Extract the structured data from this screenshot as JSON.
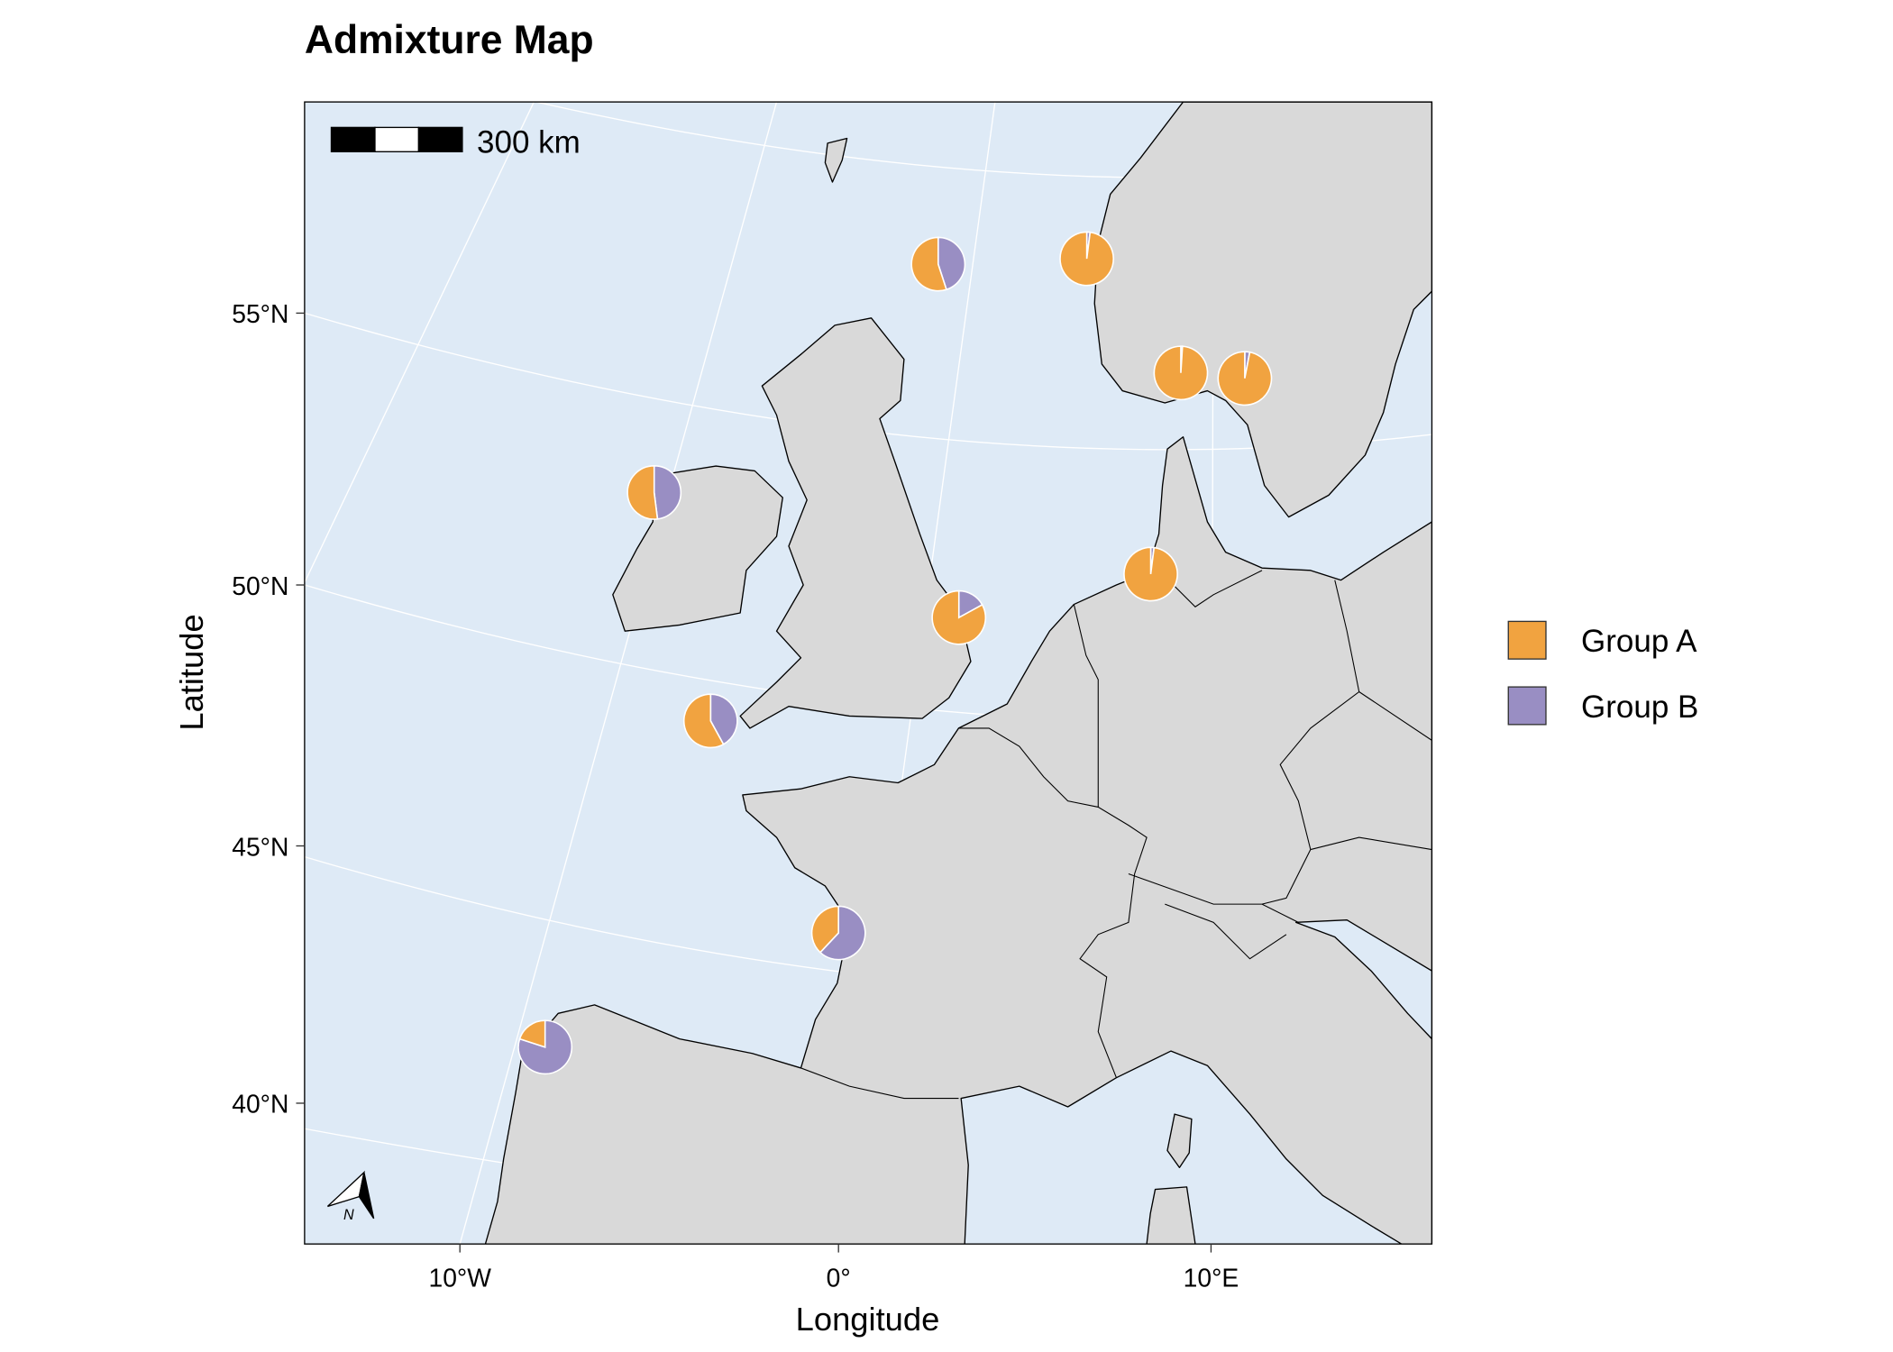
{
  "title": "Admixture Map",
  "axes": {
    "xlabel": "Longitude",
    "ylabel": "Latitude",
    "x_ticks": [
      {
        "label": "10°W",
        "lon": -10
      },
      {
        "label": "0°",
        "lon": 0
      },
      {
        "label": "10°E",
        "lon": 10
      }
    ],
    "y_ticks": [
      {
        "label": "55°N",
        "lat": 55
      },
      {
        "label": "50°N",
        "lat": 50
      },
      {
        "label": "45°N",
        "lat": 45
      },
      {
        "label": "40°N",
        "lat": 40
      }
    ]
  },
  "scale_bar": {
    "label": "300 km"
  },
  "north_arrow": {
    "label": "N",
    "icon": "north-arrow-icon"
  },
  "legend": {
    "placement": "right",
    "items": [
      {
        "label": "Group A",
        "color": "#f1a340"
      },
      {
        "label": "Group B",
        "color": "#998ec3"
      }
    ]
  },
  "colors": {
    "sea": "#deeaf6",
    "land": "#d9d9d9",
    "graticule": "#ffffff"
  },
  "chart_data": {
    "type": "pie-map",
    "title": "Admixture Map",
    "xlabel": "Longitude",
    "ylabel": "Latitude",
    "series_names": [
      "Group A",
      "Group B"
    ],
    "sites": [
      {
        "lon": 2.65,
        "lat": 55.9,
        "group_a": 0.55,
        "group_b": 0.45
      },
      {
        "lon": 6.6,
        "lat": 56.0,
        "group_a": 0.98,
        "group_b": 0.02
      },
      {
        "lon": 9.1,
        "lat": 53.9,
        "group_a": 0.99,
        "group_b": 0.01
      },
      {
        "lon": 10.8,
        "lat": 53.8,
        "group_a": 0.97,
        "group_b": 0.03
      },
      {
        "lon": -4.9,
        "lat": 51.7,
        "group_a": 0.52,
        "group_b": 0.48
      },
      {
        "lon": 3.2,
        "lat": 49.4,
        "group_a": 0.83,
        "group_b": 0.17
      },
      {
        "lon": 8.3,
        "lat": 50.2,
        "group_a": 0.98,
        "group_b": 0.02
      },
      {
        "lon": -3.4,
        "lat": 47.5,
        "group_a": 0.58,
        "group_b": 0.42
      },
      {
        "lon": 0.0,
        "lat": 43.6,
        "group_a": 0.38,
        "group_b": 0.62
      },
      {
        "lon": -7.8,
        "lat": 41.5,
        "group_a": 0.2,
        "group_b": 0.8
      }
    ]
  }
}
